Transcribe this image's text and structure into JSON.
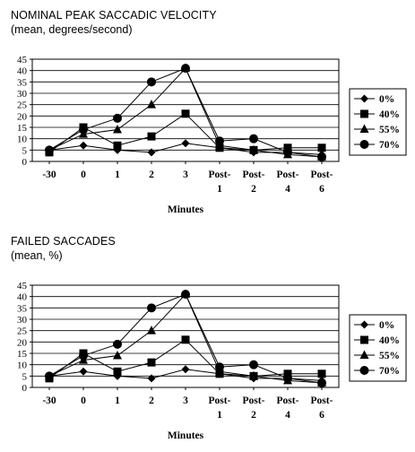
{
  "chart_data": [
    {
      "type": "line",
      "title": "NOMINAL PEAK SACCADIC VELOCITY",
      "subtitle": "(mean, degrees/second)",
      "xlabel": "Minutes",
      "ylabel": "",
      "categories": [
        [
          "-30"
        ],
        [
          "0"
        ],
        [
          "1"
        ],
        [
          "2"
        ],
        [
          "3"
        ],
        [
          "Post-",
          "1"
        ],
        [
          "Post-",
          "2"
        ],
        [
          "Post-",
          "4"
        ],
        [
          "Post-",
          "6"
        ]
      ],
      "ylim": [
        0,
        45
      ],
      "yticks": [
        0,
        5,
        10,
        15,
        20,
        25,
        30,
        35,
        40,
        45
      ],
      "grid": true,
      "legend_position": "right",
      "series": [
        {
          "name": "0%",
          "marker": "diamond",
          "values": [
            5,
            7,
            5,
            4,
            8,
            6,
            4,
            4,
            3
          ]
        },
        {
          "name": "40%",
          "marker": "square",
          "values": [
            4,
            15,
            7,
            11,
            21,
            6,
            5,
            6,
            6
          ]
        },
        {
          "name": "55%",
          "marker": "triangle",
          "values": [
            5,
            12,
            14,
            25,
            41,
            7,
            5,
            3,
            2
          ]
        },
        {
          "name": "70%",
          "marker": "circle",
          "values": [
            5,
            14,
            19,
            35,
            41,
            9,
            10,
            4,
            2
          ]
        }
      ]
    },
    {
      "type": "line",
      "title": "FAILED SACCADES",
      "subtitle": "(mean, %)",
      "xlabel": "Minutes",
      "ylabel": "",
      "categories": [
        [
          "-30"
        ],
        [
          "0"
        ],
        [
          "1"
        ],
        [
          "2"
        ],
        [
          "3"
        ],
        [
          "Post-",
          "1"
        ],
        [
          "Post-",
          "2"
        ],
        [
          "Post-",
          "4"
        ],
        [
          "Post-",
          "6"
        ]
      ],
      "ylim": [
        0,
        45
      ],
      "yticks": [
        0,
        5,
        10,
        15,
        20,
        25,
        30,
        35,
        40,
        45
      ],
      "grid": true,
      "legend_position": "right",
      "series": [
        {
          "name": "0%",
          "marker": "diamond",
          "values": [
            5,
            7,
            5,
            4,
            8,
            6,
            4,
            4,
            3
          ]
        },
        {
          "name": "40%",
          "marker": "square",
          "values": [
            4,
            15,
            7,
            11,
            21,
            6,
            5,
            6,
            6
          ]
        },
        {
          "name": "55%",
          "marker": "triangle",
          "values": [
            5,
            12,
            14,
            25,
            41,
            7,
            5,
            3,
            2
          ]
        },
        {
          "name": "70%",
          "marker": "circle",
          "values": [
            5,
            14,
            19,
            35,
            41,
            9,
            10,
            4,
            2
          ]
        }
      ]
    }
  ]
}
